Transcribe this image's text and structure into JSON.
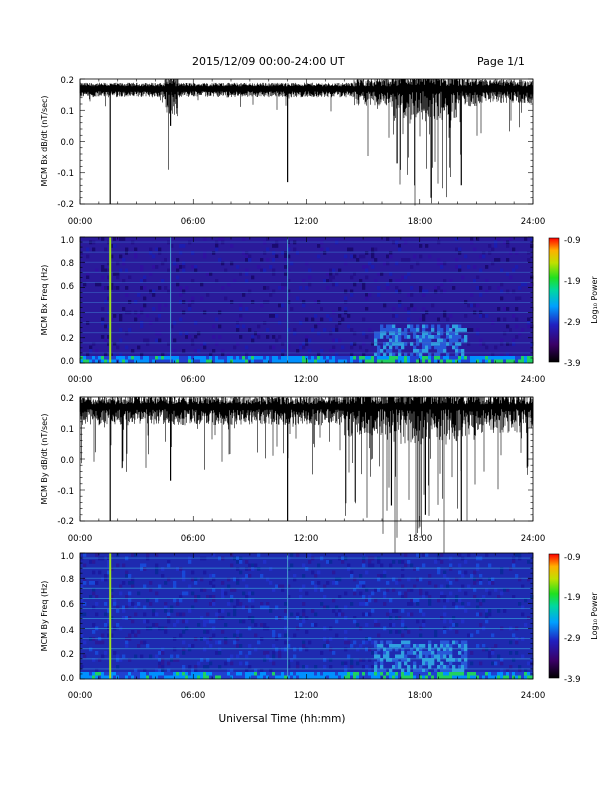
{
  "header": {
    "date_range": "2015/12/09  00:00-24:00 UT",
    "page": "Page 1/1"
  },
  "colors": {
    "trace": "#000000",
    "spectrogram_background": "#2a1a9a",
    "colorbar": [
      "#000000",
      "#3a0066",
      "#2020c0",
      "#00a0ff",
      "#00d8a0",
      "#20e020",
      "#c0e000",
      "#ffb000",
      "#ff0000"
    ]
  },
  "xaxis": {
    "tick_labels": [
      "00:00",
      "06:00",
      "12:00",
      "18:00",
      "24:00"
    ],
    "title": "Universal Time (hh:mm)"
  },
  "colorbar": {
    "label": "Log₁₀ Power",
    "tick_labels": [
      "-0.9",
      "-1.9",
      "-2.9",
      "-3.9"
    ]
  },
  "chart_data": [
    {
      "type": "line",
      "ylabel": "MCM Bx dB/dt (nT/sec)",
      "xlim_hours": [
        0,
        24
      ],
      "ylim": [
        -0.2,
        0.2
      ],
      "ytick_labels": [
        "0.2",
        "0.1",
        "0.0",
        "-0.1",
        "-0.2"
      ],
      "baseline": 0.17,
      "spikes": [
        {
          "time_hours": 1.6,
          "value": -0.2
        },
        {
          "time_hours": 4.8,
          "value": 0.05
        },
        {
          "time_hours": 11.0,
          "value": -0.13
        },
        {
          "time_hours": 16.8,
          "value": -0.07
        },
        {
          "time_hours": 18.6,
          "value": -0.18
        },
        {
          "time_hours": 20.2,
          "value": -0.14
        }
      ]
    },
    {
      "type": "heatmap",
      "ylabel": "MCM Bx Freq (Hz)",
      "xlim_hours": [
        0,
        24
      ],
      "ylim": [
        0.0,
        1.0
      ],
      "ytick_labels": [
        "1.0",
        "0.8",
        "0.6",
        "0.4",
        "0.2",
        "0.0"
      ],
      "zlim_log10_power": [
        -3.9,
        -0.9
      ],
      "vertical_features_hours": [
        1.6,
        4.8,
        11.0
      ]
    },
    {
      "type": "line",
      "ylabel": "MCM By dB/dt (nT/sec)",
      "xlim_hours": [
        0,
        24
      ],
      "ylim": [
        -0.2,
        0.2
      ],
      "ytick_labels": [
        "0.2",
        "0.1",
        "0.0",
        "-0.1",
        "-0.2"
      ],
      "baseline": 0.17,
      "spikes": [
        {
          "time_hours": 1.6,
          "value": -0.2
        },
        {
          "time_hours": 4.8,
          "value": -0.07
        },
        {
          "time_hours": 11.0,
          "value": -0.2
        },
        {
          "time_hours": 16.5,
          "value": -0.15
        },
        {
          "time_hours": 18.3,
          "value": -0.18
        },
        {
          "time_hours": 20.2,
          "value": -0.2
        }
      ]
    },
    {
      "type": "heatmap",
      "ylabel": "MCM By Freq (Hz)",
      "xlim_hours": [
        0,
        24
      ],
      "ylim": [
        0.0,
        1.0
      ],
      "ytick_labels": [
        "1.0",
        "0.8",
        "0.6",
        "0.4",
        "0.2",
        "0.0"
      ],
      "zlim_log10_power": [
        -3.9,
        -0.9
      ],
      "vertical_features_hours": [
        1.6,
        11.0
      ]
    }
  ]
}
